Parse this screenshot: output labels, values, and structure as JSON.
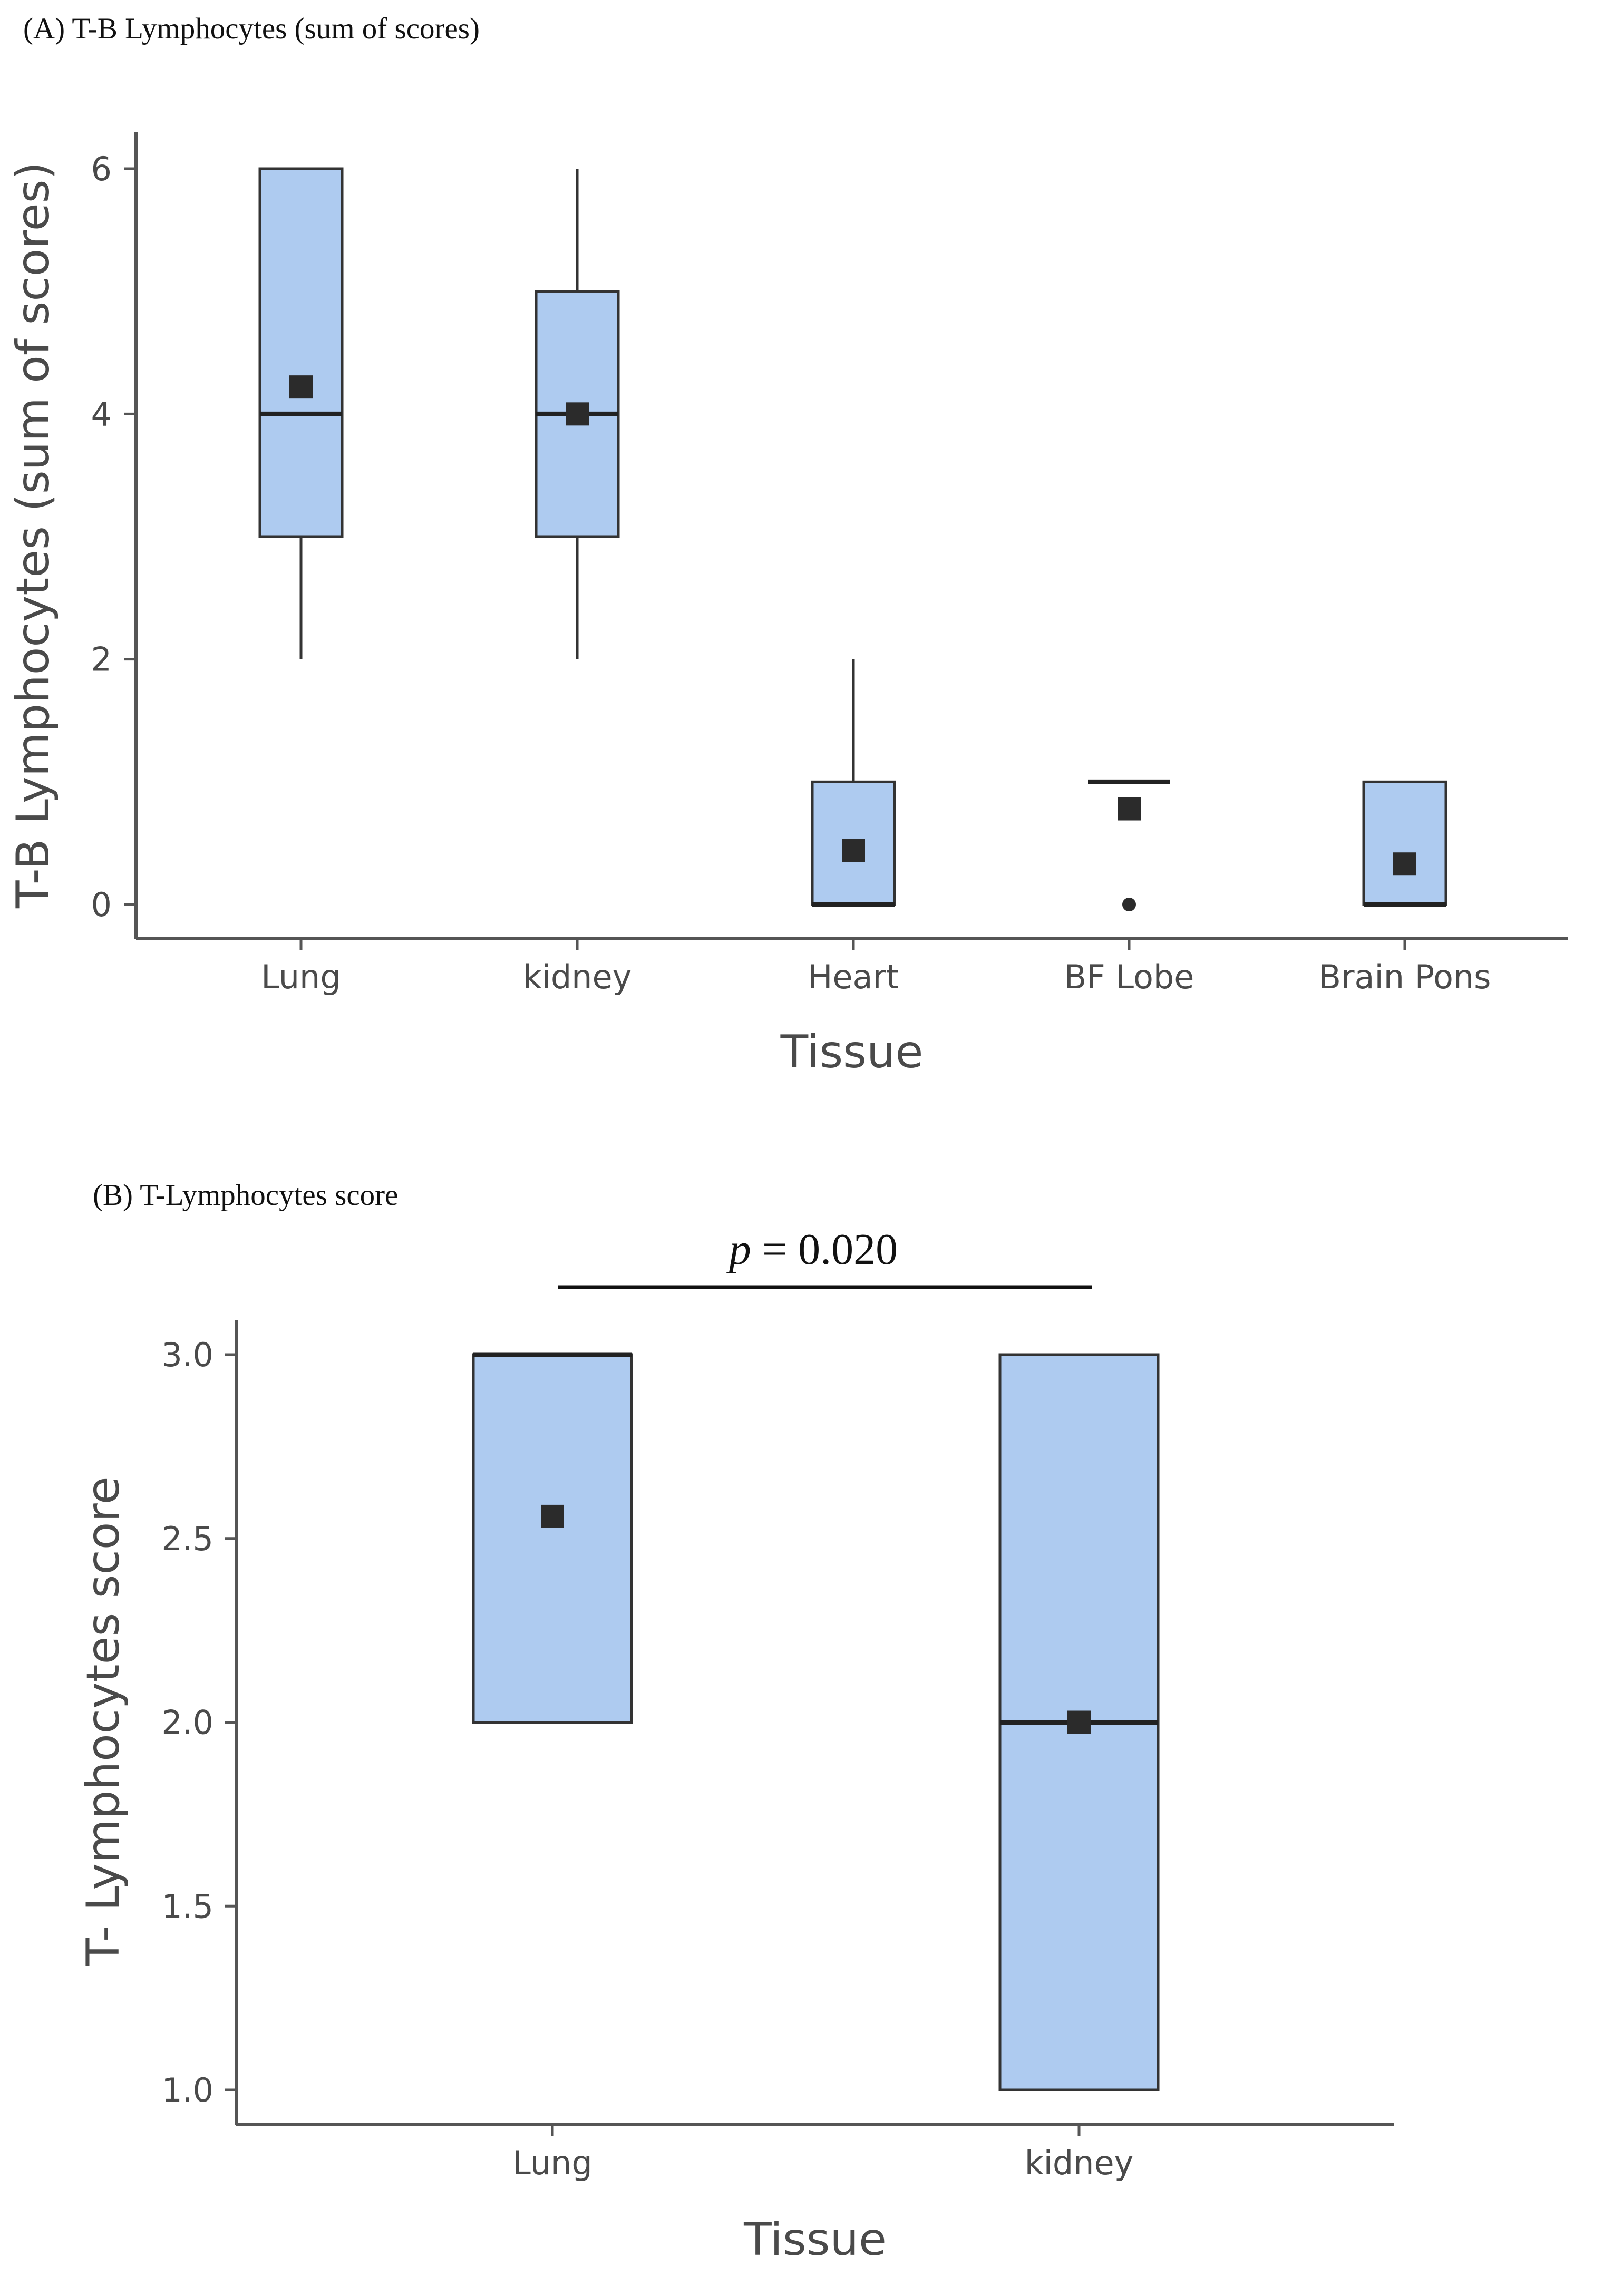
{
  "chart_data": [
    {
      "type": "box",
      "panel_title": "(A) T-B Lymphocytes (sum of scores)",
      "xlabel": "Tissue",
      "ylabel": "T-B Lymphocytes (sum of scores)",
      "ylim": [
        -0.3,
        6.3
      ],
      "yticks": [
        0,
        2,
        4,
        6
      ],
      "ytick_labels": [
        "0",
        "2",
        "4",
        "6"
      ],
      "categories": [
        "Lung",
        "kidney",
        "Heart",
        "BF Lobe",
        "Brain Pons"
      ],
      "boxes": [
        {
          "category": "Lung",
          "q1": 3,
          "median": 4,
          "q3": 6,
          "whisker_low": 2,
          "whisker_high": 6,
          "mean": 4.22,
          "outliers": []
        },
        {
          "category": "kidney",
          "q1": 3,
          "median": 4,
          "q3": 5,
          "whisker_low": 2,
          "whisker_high": 6,
          "mean": 4.0,
          "outliers": []
        },
        {
          "category": "Heart",
          "q1": 0,
          "median": 0,
          "q3": 1,
          "whisker_low": 0,
          "whisker_high": 2,
          "mean": 0.44,
          "outliers": []
        },
        {
          "category": "BF Lobe",
          "q1": 1,
          "median": 1,
          "q3": 1,
          "whisker_low": 1,
          "whisker_high": 1,
          "mean": 0.78,
          "outliers": [
            0
          ]
        },
        {
          "category": "Brain Pons",
          "q1": 0,
          "median": 0,
          "q3": 1,
          "whisker_low": 0,
          "whisker_high": 1,
          "mean": 0.33,
          "outliers": []
        }
      ],
      "colors": {
        "box_fill": "#aecbf0",
        "box_stroke": "#333333",
        "median": "#222222",
        "mean_marker": "#2b2b2b",
        "axis": "#555555"
      }
    },
    {
      "type": "box",
      "panel_title": "(B) T-Lymphocytes score",
      "xlabel": "Tissue",
      "ylabel": "T- Lymphocytes score",
      "ylim": [
        0.9,
        3.1
      ],
      "yticks": [
        1.0,
        1.5,
        2.0,
        2.5,
        3.0
      ],
      "ytick_labels": [
        "1.0",
        "1.5",
        "2.0",
        "2.5",
        "3.0"
      ],
      "categories": [
        "Lung",
        "kidney"
      ],
      "boxes": [
        {
          "category": "Lung",
          "q1": 2,
          "median": 3,
          "q3": 3,
          "whisker_low": 2,
          "whisker_high": 3,
          "mean": 2.56,
          "outliers": []
        },
        {
          "category": "kidney",
          "q1": 1,
          "median": 2,
          "q3": 3,
          "whisker_low": 1,
          "whisker_high": 3,
          "mean": 2.0,
          "outliers": []
        }
      ],
      "annotation": {
        "p_symbol": "p",
        "p_text": " = 0.020",
        "between": [
          "Lung",
          "kidney"
        ]
      },
      "colors": {
        "box_fill": "#aecbf0",
        "box_stroke": "#333333",
        "median": "#222222",
        "mean_marker": "#2b2b2b",
        "axis": "#555555"
      }
    }
  ]
}
